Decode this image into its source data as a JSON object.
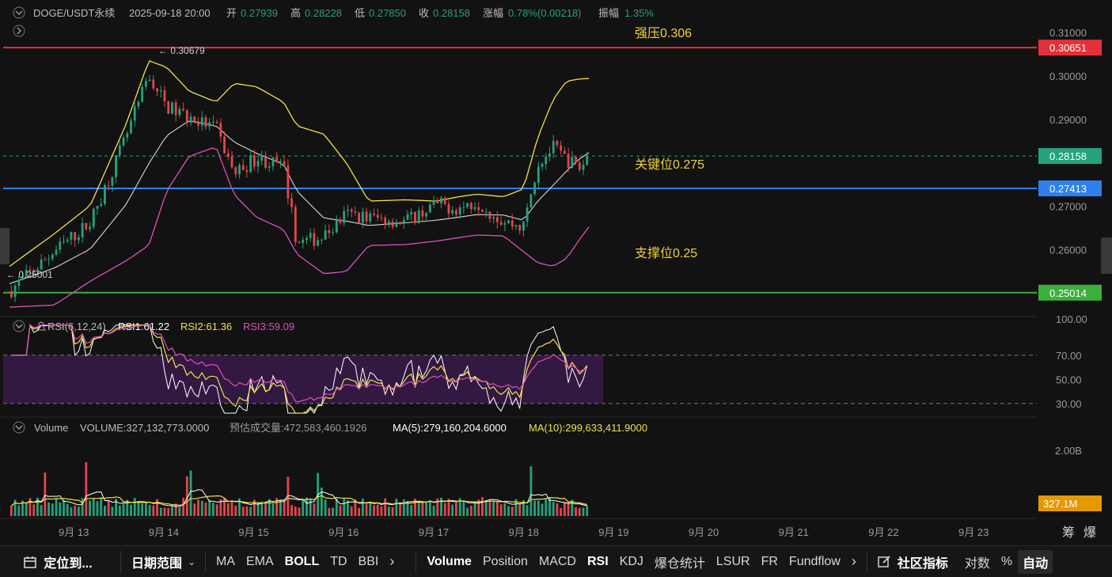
{
  "header": {
    "symbol": "DOGE/USDT永续",
    "datetime": "2025-09-18 20:00",
    "open_label": "开",
    "open": "0.27939",
    "high_label": "高",
    "high": "0.28228",
    "low_label": "低",
    "low": "0.27850",
    "close_label": "收",
    "close": "0.28158",
    "change_label": "涨幅",
    "change": "0.78%(0.00218)",
    "amplitude_label": "振幅",
    "amplitude": "1.35%"
  },
  "annotations": {
    "resistance": "强压0.306",
    "key_level": "关键位0.275",
    "support": "支撑位0.25",
    "high_marker": "← 0.30679",
    "low_marker": "← 0.25001"
  },
  "price_axis": {
    "ticks": [
      "0.31000",
      "0.30000",
      "0.29000",
      "0.27000",
      "0.26000"
    ],
    "badges": [
      {
        "label": "0.30651",
        "color": "#e5303a"
      },
      {
        "label": "0.28158",
        "color": "#26a17b"
      },
      {
        "label": "0.27413",
        "color": "#2f80ed"
      },
      {
        "label": "0.25014",
        "color": "#3ab03a"
      }
    ]
  },
  "rsi": {
    "title": "RSI(6,12,24)",
    "rsi1": "RSI1:61.22",
    "rsi2": "RSI2:61.36",
    "rsi3": "RSI3:59.09",
    "ticks": [
      "100.00",
      "70.00",
      "50.00",
      "30.00"
    ]
  },
  "volume": {
    "title": "Volume",
    "value": "VOLUME:327,132,773.0000",
    "est": "预估成交量:472,583,460.1926",
    "ma5": "MA(5):279,160,204.6000",
    "ma10": "MA(10):299,633,411.9000",
    "tick": "2.00B",
    "badge": "327.1M",
    "badge_color": "#e59800"
  },
  "time_axis": {
    "ticks": [
      "9月 13",
      "9月 14",
      "9月 15",
      "9月 16",
      "9月 17",
      "9月 18",
      "9月 19",
      "9月 20",
      "9月 21",
      "9月 22",
      "9月 23"
    ],
    "right_labels": [
      "筹",
      "爆"
    ]
  },
  "colors": {
    "up": "#26a17b",
    "down": "#e0474c",
    "boll_upper": "#f2e14a",
    "boll_mid": "#d8d8d8",
    "boll_lower": "#e04fbf",
    "rsi1": "#ffffff",
    "rsi2": "#f2e14a",
    "rsi3": "#e04fbf"
  },
  "toolbar": {
    "locate": "定位到...",
    "date_range": "日期范围",
    "left_items": [
      "MA",
      "EMA",
      "BOLL",
      "TD",
      "BBI"
    ],
    "right_items": [
      "Volume",
      "Position",
      "MACD",
      "RSI",
      "KDJ",
      "爆仓统计",
      "LSUR",
      "FR",
      "Fundflow"
    ],
    "community": "社区指标",
    "log": "对数",
    "pct": "%",
    "auto": "自动"
  },
  "chart_data": {
    "type": "candlestick",
    "symbol": "DOGE/USDT永续",
    "indicators": [
      "BOLL",
      "RSI(6,12,24)",
      "Volume"
    ],
    "x_range": [
      "9月 13",
      "9月 23"
    ],
    "price_ylim": [
      0.245,
      0.312
    ],
    "levels": [
      {
        "label": "强压0.306",
        "value": 0.30651
      },
      {
        "label": "关键位0.275",
        "value": 0.27413
      },
      {
        "label": "支撑位0.25",
        "value": 0.25014
      }
    ],
    "last_price": 0.28158,
    "anchors": [
      {
        "x": 0.0,
        "close": 0.2505,
        "upper": 0.2562,
        "mid": 0.2522,
        "lower": 0.2468
      },
      {
        "x": 0.5,
        "close": 0.2596,
        "upper": 0.2637,
        "mid": 0.2558,
        "lower": 0.2473
      },
      {
        "x": 0.9,
        "close": 0.2663,
        "upper": 0.2702,
        "mid": 0.2602,
        "lower": 0.2528
      },
      {
        "x": 1.3,
        "close": 0.286,
        "upper": 0.289,
        "mid": 0.2705,
        "lower": 0.2575
      },
      {
        "x": 1.55,
        "close": 0.3,
        "upper": 0.3035,
        "mid": 0.2798,
        "lower": 0.261
      },
      {
        "x": 1.75,
        "close": 0.293,
        "upper": 0.302,
        "mid": 0.2863,
        "lower": 0.2735
      },
      {
        "x": 2.0,
        "close": 0.2903,
        "upper": 0.2965,
        "mid": 0.2897,
        "lower": 0.2815
      },
      {
        "x": 2.3,
        "close": 0.288,
        "upper": 0.294,
        "mid": 0.2885,
        "lower": 0.2837
      },
      {
        "x": 2.5,
        "close": 0.2775,
        "upper": 0.2983,
        "mid": 0.2848,
        "lower": 0.2727
      },
      {
        "x": 2.75,
        "close": 0.2812,
        "upper": 0.2975,
        "mid": 0.2822,
        "lower": 0.2675
      },
      {
        "x": 3.05,
        "close": 0.279,
        "upper": 0.294,
        "mid": 0.2797,
        "lower": 0.2647
      },
      {
        "x": 3.2,
        "close": 0.2615,
        "upper": 0.2885,
        "mid": 0.2735,
        "lower": 0.259
      },
      {
        "x": 3.5,
        "close": 0.263,
        "upper": 0.2866,
        "mid": 0.2673,
        "lower": 0.2545
      },
      {
        "x": 3.75,
        "close": 0.2682,
        "upper": 0.28,
        "mid": 0.2666,
        "lower": 0.255
      },
      {
        "x": 4.0,
        "close": 0.2675,
        "upper": 0.2712,
        "mid": 0.2656,
        "lower": 0.261
      },
      {
        "x": 4.4,
        "close": 0.2665,
        "upper": 0.2715,
        "mid": 0.2662,
        "lower": 0.2612
      },
      {
        "x": 4.75,
        "close": 0.2705,
        "upper": 0.2712,
        "mid": 0.2668,
        "lower": 0.262
      },
      {
        "x": 5.0,
        "close": 0.2695,
        "upper": 0.2722,
        "mid": 0.2675,
        "lower": 0.2628
      },
      {
        "x": 5.2,
        "close": 0.2712,
        "upper": 0.2728,
        "mid": 0.2681,
        "lower": 0.2634
      },
      {
        "x": 5.5,
        "close": 0.2665,
        "upper": 0.2722,
        "mid": 0.268,
        "lower": 0.2632
      },
      {
        "x": 5.72,
        "close": 0.2652,
        "upper": 0.274,
        "mid": 0.2668,
        "lower": 0.2596
      },
      {
        "x": 5.88,
        "close": 0.2798,
        "upper": 0.2858,
        "mid": 0.2712,
        "lower": 0.257
      },
      {
        "x": 6.05,
        "close": 0.2835,
        "upper": 0.2945,
        "mid": 0.2748,
        "lower": 0.2562
      },
      {
        "x": 6.2,
        "close": 0.2808,
        "upper": 0.2988,
        "mid": 0.2781,
        "lower": 0.258
      },
      {
        "x": 6.35,
        "close": 0.2788,
        "upper": 0.2993,
        "mid": 0.281,
        "lower": 0.2625
      },
      {
        "x": 6.45,
        "close": 0.28158,
        "upper": 0.2994,
        "mid": 0.2823,
        "lower": 0.2653
      }
    ],
    "rsi_ylim": [
      20,
      100
    ],
    "rsi_bands": [
      30,
      70
    ],
    "rsi_last": {
      "rsi1": 61.22,
      "rsi2": 61.36,
      "rsi3": 59.09
    },
    "volume_last": 327132773,
    "volume_ma5": 279160204.6,
    "volume_ma10": 299633411.9,
    "volume_ylim": [
      0,
      2500000000
    ]
  }
}
